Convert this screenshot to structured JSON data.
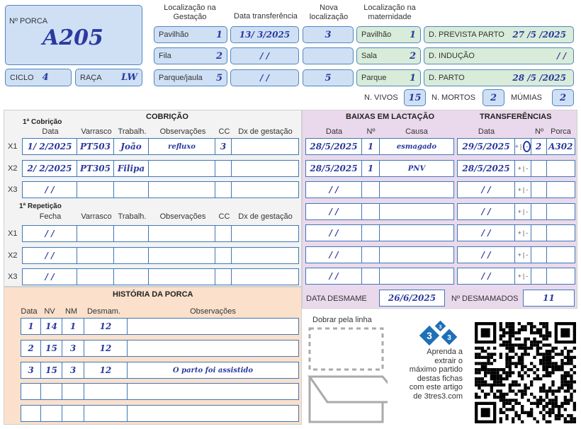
{
  "sow": {
    "label": "Nº PORCA",
    "value": "A205",
    "ciclo_label": "CICLO",
    "ciclo": "4",
    "raca_label": "RAÇA",
    "raca": "LW"
  },
  "gestation": {
    "header": "Localização na Gestação",
    "transfer_header": "Data transferência",
    "new_loc_header": "Nova localização",
    "rows": [
      {
        "label": "Pavilhão",
        "value": "1",
        "transfer_date": "13/ 3/2025",
        "new_loc": "3"
      },
      {
        "label": "Fila",
        "value": "2",
        "transfer_date": "/   /",
        "new_loc": ""
      },
      {
        "label": "Parque/jaula",
        "value": "5",
        "transfer_date": "/   /",
        "new_loc": "5"
      }
    ]
  },
  "maternity": {
    "header": "Localização na maternidade",
    "rows": [
      {
        "label": "Pavilhão",
        "value": "1",
        "date_label": "D. PREVISTA PARTO",
        "date": "27 /5 /2025"
      },
      {
        "label": "Sala",
        "value": "2",
        "date_label": "D. INDUÇÃO",
        "date": "/   /"
      },
      {
        "label": "Parque",
        "value": "1",
        "date_label": "D. PARTO",
        "date": "28 /5 /2025"
      }
    ],
    "vivos_label": "N. VIVOS",
    "vivos": "15",
    "mortos_label": "N. MORTOS",
    "mortos": "2",
    "mumias_label": "MÚMIAS",
    "mumias": "2"
  },
  "cobricao": {
    "title": "COBRIÇÃO",
    "first": {
      "title": "1ª Cobrição",
      "columns": [
        "Data",
        "Varrasco",
        "Trabalh.",
        "Observações",
        "CC",
        "Dx de gestação"
      ],
      "rows": [
        {
          "label": "X1",
          "cells": [
            "1/ 2/2025",
            "PT503",
            "João",
            "refluxo",
            "3",
            ""
          ]
        },
        {
          "label": "X2",
          "cells": [
            "2/ 2/2025",
            "PT305",
            "Filipa",
            "",
            "",
            ""
          ]
        },
        {
          "label": "X3",
          "cells": [
            "/   /",
            "",
            "",
            "",
            "",
            ""
          ]
        }
      ]
    },
    "repeat": {
      "title": "1ª Repetição",
      "columns": [
        "Fecha",
        "Varrasco",
        "Trabalh.",
        "Observações",
        "CC",
        "Dx de gestação"
      ],
      "rows": [
        {
          "label": "X1",
          "cells": [
            "/   /",
            "",
            "",
            "",
            "",
            ""
          ]
        },
        {
          "label": "X2",
          "cells": [
            "/   /",
            "",
            "",
            "",
            "",
            ""
          ]
        },
        {
          "label": "X3",
          "cells": [
            "/   /",
            "",
            "",
            "",
            "",
            ""
          ]
        }
      ]
    }
  },
  "baixas": {
    "title": "BAIXAS EM LACTAÇÃO",
    "columns": [
      "Data",
      "Nº",
      "Causa"
    ],
    "rows": [
      [
        "28/5/2025",
        "1",
        "esmagado"
      ],
      [
        "28/5/2025",
        "1",
        "PNV"
      ],
      [
        "/   /",
        "",
        ""
      ],
      [
        "/   /",
        "",
        ""
      ],
      [
        "/   /",
        "",
        ""
      ],
      [
        "/   /",
        "",
        ""
      ],
      [
        "/   /",
        "",
        ""
      ]
    ]
  },
  "transfer": {
    "title": "TRANSFERÊNCIAS",
    "columns": [
      "Data",
      "Nº",
      "Porca"
    ],
    "sign": [
      "+",
      "|",
      "-"
    ],
    "rows": [
      {
        "date": "29/5/2025",
        "selected": "-",
        "n": "2",
        "porca": "A302"
      },
      {
        "date": "28/5/2025",
        "selected": "",
        "n": "",
        "porca": ""
      },
      {
        "date": "/   /",
        "selected": "",
        "n": "",
        "porca": ""
      },
      {
        "date": "/   /",
        "selected": "",
        "n": "",
        "porca": ""
      },
      {
        "date": "/   /",
        "selected": "",
        "n": "",
        "porca": ""
      },
      {
        "date": "/   /",
        "selected": "",
        "n": "",
        "porca": ""
      },
      {
        "date": "/   /",
        "selected": "",
        "n": "",
        "porca": ""
      }
    ]
  },
  "weaning": {
    "date_label": "DATA DESMAME",
    "date": "26/6/2025",
    "count_label": "Nº DESMAMADOS",
    "count": "11"
  },
  "history": {
    "title": "HISTÓRIA DA PORCA",
    "columns": [
      "Data",
      "NV",
      "NM",
      "Desmam.",
      "Observações"
    ],
    "rows": [
      [
        "1",
        "14",
        "1",
        "12",
        ""
      ],
      [
        "2",
        "15",
        "3",
        "12",
        ""
      ],
      [
        "3",
        "15",
        "3",
        "12",
        "O parto foi assistido"
      ],
      [
        "",
        "",
        "",
        "",
        ""
      ],
      [
        "",
        "",
        "",
        "",
        ""
      ]
    ]
  },
  "footer": {
    "fold_label": "Dobrar pela linha",
    "logo_text": "3tres3",
    "promo": [
      "Aprenda a",
      "extrair o",
      "máximo partido",
      "destas fichas",
      "com este artigo",
      "de 3tres3.com"
    ]
  },
  "colors": {
    "blue_fill": "#cfe0f5",
    "green_fill": "#d8ecd9",
    "pink_bg": "#ead9ec",
    "peach_bg": "#fbe0cc",
    "grey_bg": "#f3f3f3",
    "ink": "#2a3a9e",
    "border": "#3f78b5"
  }
}
